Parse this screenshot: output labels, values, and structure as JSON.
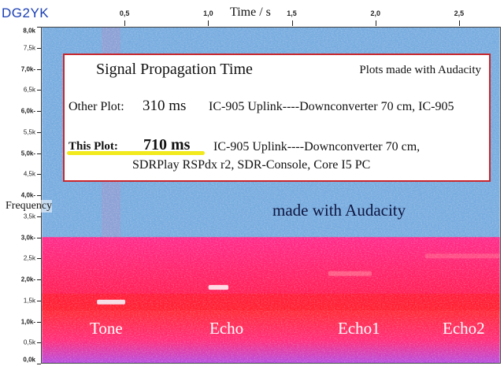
{
  "header": {
    "callsign": "DG2YK"
  },
  "chart_data": {
    "type": "heatmap",
    "xlabel": "Time / s",
    "ylabel": "Frequency",
    "xlim": [
      0.0,
      2.75
    ],
    "ylim": [
      0,
      8000
    ],
    "x_ticks": [
      "0,5",
      "1,0",
      "1,5",
      "2,0",
      "2,5"
    ],
    "x_tick_values": [
      0.5,
      1.0,
      1.5,
      2.0,
      2.5
    ],
    "y_ticks": [
      {
        "label": "8,0k",
        "value": 8000,
        "major": true
      },
      {
        "label": "7,5k",
        "value": 7500,
        "major": false
      },
      {
        "label": "7,0k-",
        "value": 7000,
        "major": true
      },
      {
        "label": "6,5k",
        "value": 6500,
        "major": false
      },
      {
        "label": "6,0k-",
        "value": 6000,
        "major": true
      },
      {
        "label": "5,5k",
        "value": 5500,
        "major": false
      },
      {
        "label": "5,0k-",
        "value": 5000,
        "major": true
      },
      {
        "label": "4,5k",
        "value": 4500,
        "major": false
      },
      {
        "label": "4,0k-",
        "value": 4000,
        "major": true
      },
      {
        "label": "3,5k",
        "value": 3500,
        "major": false
      },
      {
        "label": "3,0k-",
        "value": 3000,
        "major": true
      },
      {
        "label": "2,5k",
        "value": 2500,
        "major": false
      },
      {
        "label": "2,0k-",
        "value": 2000,
        "major": true
      },
      {
        "label": "1,5k",
        "value": 1500,
        "major": false
      },
      {
        "label": "1,0k-",
        "value": 1000,
        "major": true
      },
      {
        "label": "0,5k",
        "value": 500,
        "major": false
      },
      {
        "label": "0,0k",
        "value": 0,
        "major": true
      }
    ],
    "signals": [
      {
        "label": "Tone",
        "x_start": 0.33,
        "x_end": 0.5,
        "freq": 1450
      },
      {
        "label": "Echo",
        "x_start": 1.0,
        "x_end": 1.12,
        "freq": 1800
      },
      {
        "label": "Echo1",
        "x_start": 1.72,
        "x_end": 1.98,
        "freq": 2130
      },
      {
        "label": "Echo2",
        "x_start": 2.3,
        "x_end": 2.75,
        "freq": 2550
      }
    ],
    "colors": {
      "background": "#6fa6dc",
      "band": "#ff1f64",
      "band_low": "#d24ad2",
      "tone": "#f4eef4"
    },
    "band_top_freq": 3000
  },
  "info_box": {
    "title": "Signal Propagation Time",
    "note": "Plots made with Audacity",
    "other_label": "Other Plot:",
    "other_value": "310 ms",
    "other_desc": "IC-905 Uplink----Downconverter 70 cm, IC-905",
    "this_label": "This Plot:",
    "this_value": "710 ms",
    "this_desc_line1": "IC-905 Uplink----Downconverter 70 cm,",
    "this_desc_line2": "SDRPlay RSPdx r2, SDR-Console, Core I5 PC",
    "border_color": "#c8262c",
    "highlight_color": "#f2ea1c"
  },
  "overlay_text": "made with Audacity"
}
